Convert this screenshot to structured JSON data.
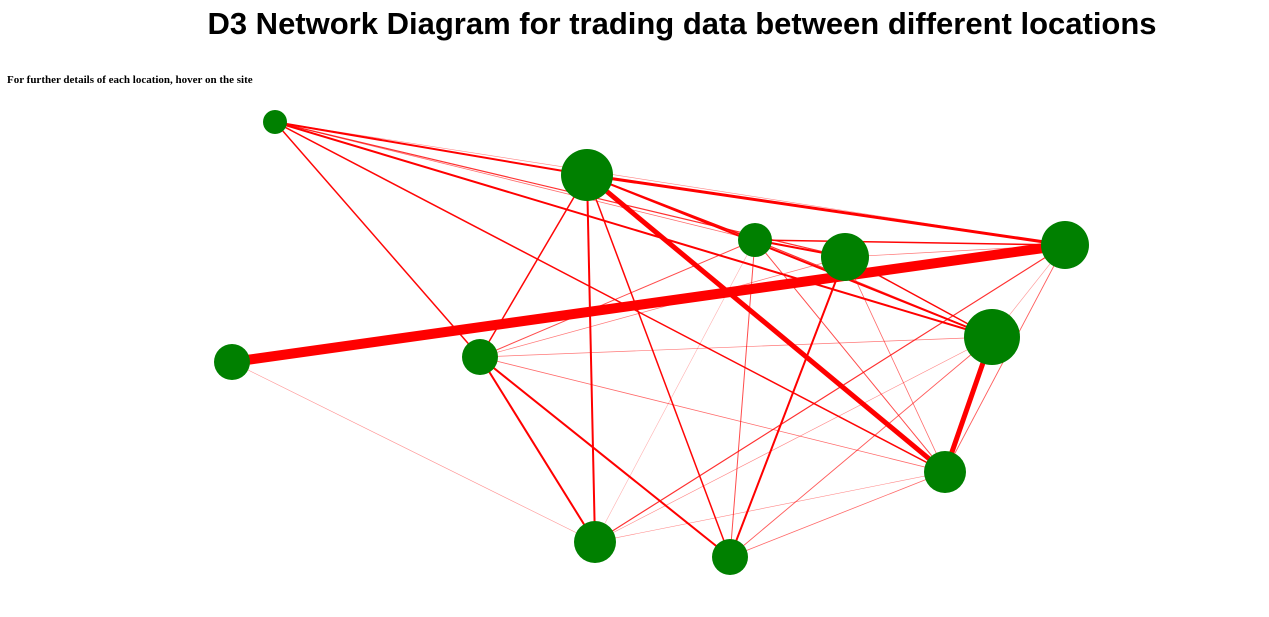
{
  "page": {
    "title": "D3 Network Diagram for trading data between different locations",
    "instructions": "For further details of each location, hover on the site"
  },
  "colors": {
    "node": "#008000",
    "link": "#ff0000",
    "background": "#ffffff"
  },
  "nodes": [
    {
      "id": "n1"
    },
    {
      "id": "n2"
    },
    {
      "id": "n3"
    },
    {
      "id": "n4"
    },
    {
      "id": "n5"
    },
    {
      "id": "n6"
    },
    {
      "id": "n7"
    },
    {
      "id": "n8"
    },
    {
      "id": "n9"
    },
    {
      "id": "n10"
    },
    {
      "id": "n11"
    }
  ],
  "links": [
    {
      "source": "n7",
      "target": "n5",
      "weight": 10
    },
    {
      "source": "n2",
      "target": "n9",
      "weight": 5
    },
    {
      "source": "n6",
      "target": "n9",
      "weight": 5
    },
    {
      "source": "n2",
      "target": "n5",
      "weight": 3
    },
    {
      "source": "n1",
      "target": "n6",
      "weight": 2
    },
    {
      "source": "n1",
      "target": "n2",
      "weight": 2
    },
    {
      "source": "n1",
      "target": "n9",
      "weight": 1.5
    },
    {
      "source": "n1",
      "target": "n8",
      "weight": 1.5
    },
    {
      "source": "n1",
      "target": "n4",
      "weight": 1.2
    },
    {
      "source": "n1",
      "target": "n3",
      "weight": 0.8
    },
    {
      "source": "n1",
      "target": "n5",
      "weight": 0.6
    },
    {
      "source": "n2",
      "target": "n6",
      "weight": 2
    },
    {
      "source": "n2",
      "target": "n8",
      "weight": 1.5
    },
    {
      "source": "n2",
      "target": "n10",
      "weight": 2
    },
    {
      "source": "n2",
      "target": "n3",
      "weight": 1.5
    },
    {
      "source": "n2",
      "target": "n11",
      "weight": 1.5
    },
    {
      "source": "n3",
      "target": "n5",
      "weight": 1.5
    },
    {
      "source": "n3",
      "target": "n9",
      "weight": 1
    },
    {
      "source": "n3",
      "target": "n11",
      "weight": 1
    },
    {
      "source": "n3",
      "target": "n4",
      "weight": 2
    },
    {
      "source": "n3",
      "target": "n8",
      "weight": 1
    },
    {
      "source": "n3",
      "target": "n6",
      "weight": 1.2
    },
    {
      "source": "n3",
      "target": "n10",
      "weight": 0.3
    },
    {
      "source": "n4",
      "target": "n6",
      "weight": 1.5
    },
    {
      "source": "n4",
      "target": "n9",
      "weight": 0.8
    },
    {
      "source": "n4",
      "target": "n5",
      "weight": 0.7
    },
    {
      "source": "n4",
      "target": "n8",
      "weight": 0.7
    },
    {
      "source": "n5",
      "target": "n6",
      "weight": 0.5
    },
    {
      "source": "n5",
      "target": "n10",
      "weight": 1.2
    },
    {
      "source": "n5",
      "target": "n9",
      "weight": 0.9
    },
    {
      "source": "n6",
      "target": "n8",
      "weight": 0.7
    },
    {
      "source": "n6",
      "target": "n10",
      "weight": 0.6
    },
    {
      "source": "n6",
      "target": "n11",
      "weight": 0.9
    },
    {
      "source": "n8",
      "target": "n10",
      "weight": 2
    },
    {
      "source": "n8",
      "target": "n11",
      "weight": 2
    },
    {
      "source": "n4",
      "target": "n11",
      "weight": 2
    },
    {
      "source": "n7",
      "target": "n10",
      "weight": 0.5
    },
    {
      "source": "n9",
      "target": "n10",
      "weight": 0.6
    },
    {
      "source": "n9",
      "target": "n8",
      "weight": 0.8
    },
    {
      "source": "n9",
      "target": "n11",
      "weight": 0.8
    }
  ]
}
